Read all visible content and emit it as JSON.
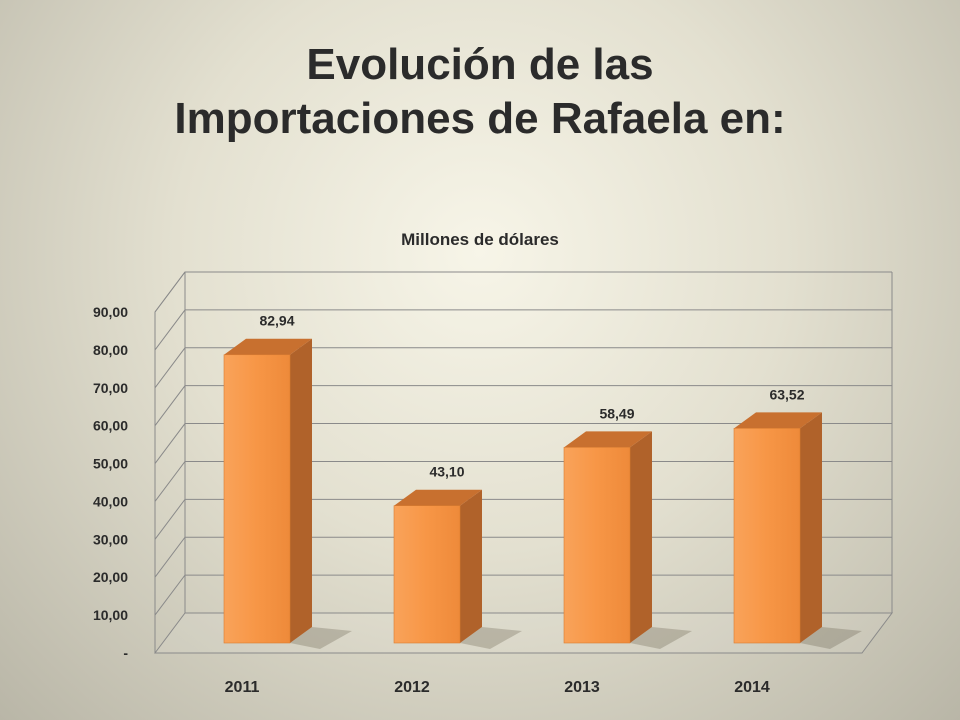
{
  "slide": {
    "title_line1": "Evolución de las",
    "title_line2": "Importaciones de Rafaela en:"
  },
  "chart_data": {
    "type": "bar",
    "title": "Millones de dólares",
    "categories": [
      "2011",
      "2012",
      "2013",
      "2014"
    ],
    "values": [
      82.94,
      43.1,
      58.49,
      63.52
    ],
    "data_labels": [
      "82,94",
      "43,10",
      "58,49",
      "63,52"
    ],
    "ylim": [
      0,
      90
    ],
    "yticks": [
      0,
      10,
      20,
      30,
      40,
      50,
      60,
      70,
      80,
      90
    ],
    "ytick_labels": [
      "-",
      "10,00",
      "20,00",
      "30,00",
      "40,00",
      "50,00",
      "60,00",
      "70,00",
      "80,00",
      "90,00"
    ],
    "grid": true,
    "legend": false,
    "colors": {
      "bar_front": "#f79646",
      "bar_side": "#b0622a",
      "bar_top": "#c8702f"
    }
  }
}
